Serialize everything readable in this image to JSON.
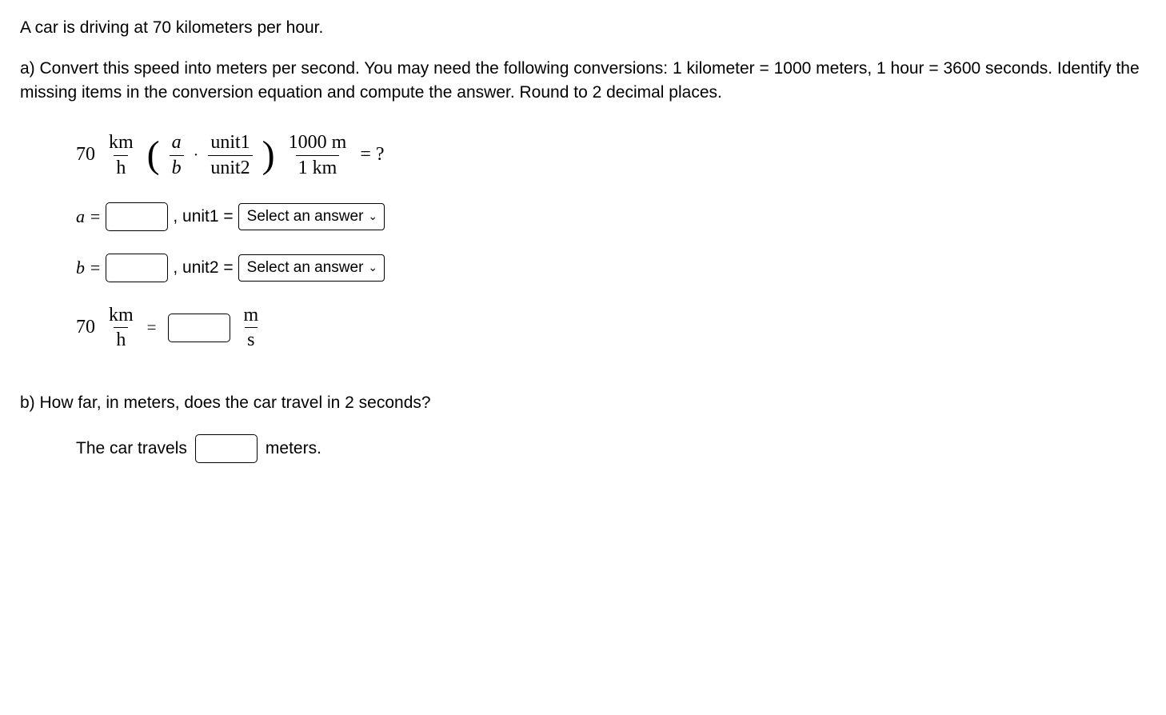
{
  "intro": "A car is driving at 70 kilometers per hour.",
  "part_a": {
    "prompt": "a) Convert this speed into meters per second. You may need the following conversions: 1 kilometer = 1000 meters, 1 hour = 3600 seconds. Identify the missing items in the conversion equation and compute the answer. Round to 2 decimal places.",
    "eq": {
      "coeff": "70",
      "f1_num": "km",
      "f1_den": "h",
      "f2_num": "a",
      "f2_den": "b",
      "f3_num": "unit1",
      "f3_den": "unit2",
      "f4_num": "1000  m",
      "f4_den": "1  km",
      "rhs": "= ?"
    },
    "a_label": "a =",
    "unit1_label": ", unit1 =",
    "b_label": "b =",
    "unit2_label": ", unit2 =",
    "select_placeholder": "Select an answer",
    "result": {
      "coeff": "70",
      "lhs_num": "km",
      "lhs_den": "h",
      "eq": "=",
      "rhs_num": "m",
      "rhs_den": "s"
    }
  },
  "part_b": {
    "prompt": "b) How far, in meters, does the car travel in 2 seconds?",
    "before": "The car travels",
    "after": "meters."
  }
}
